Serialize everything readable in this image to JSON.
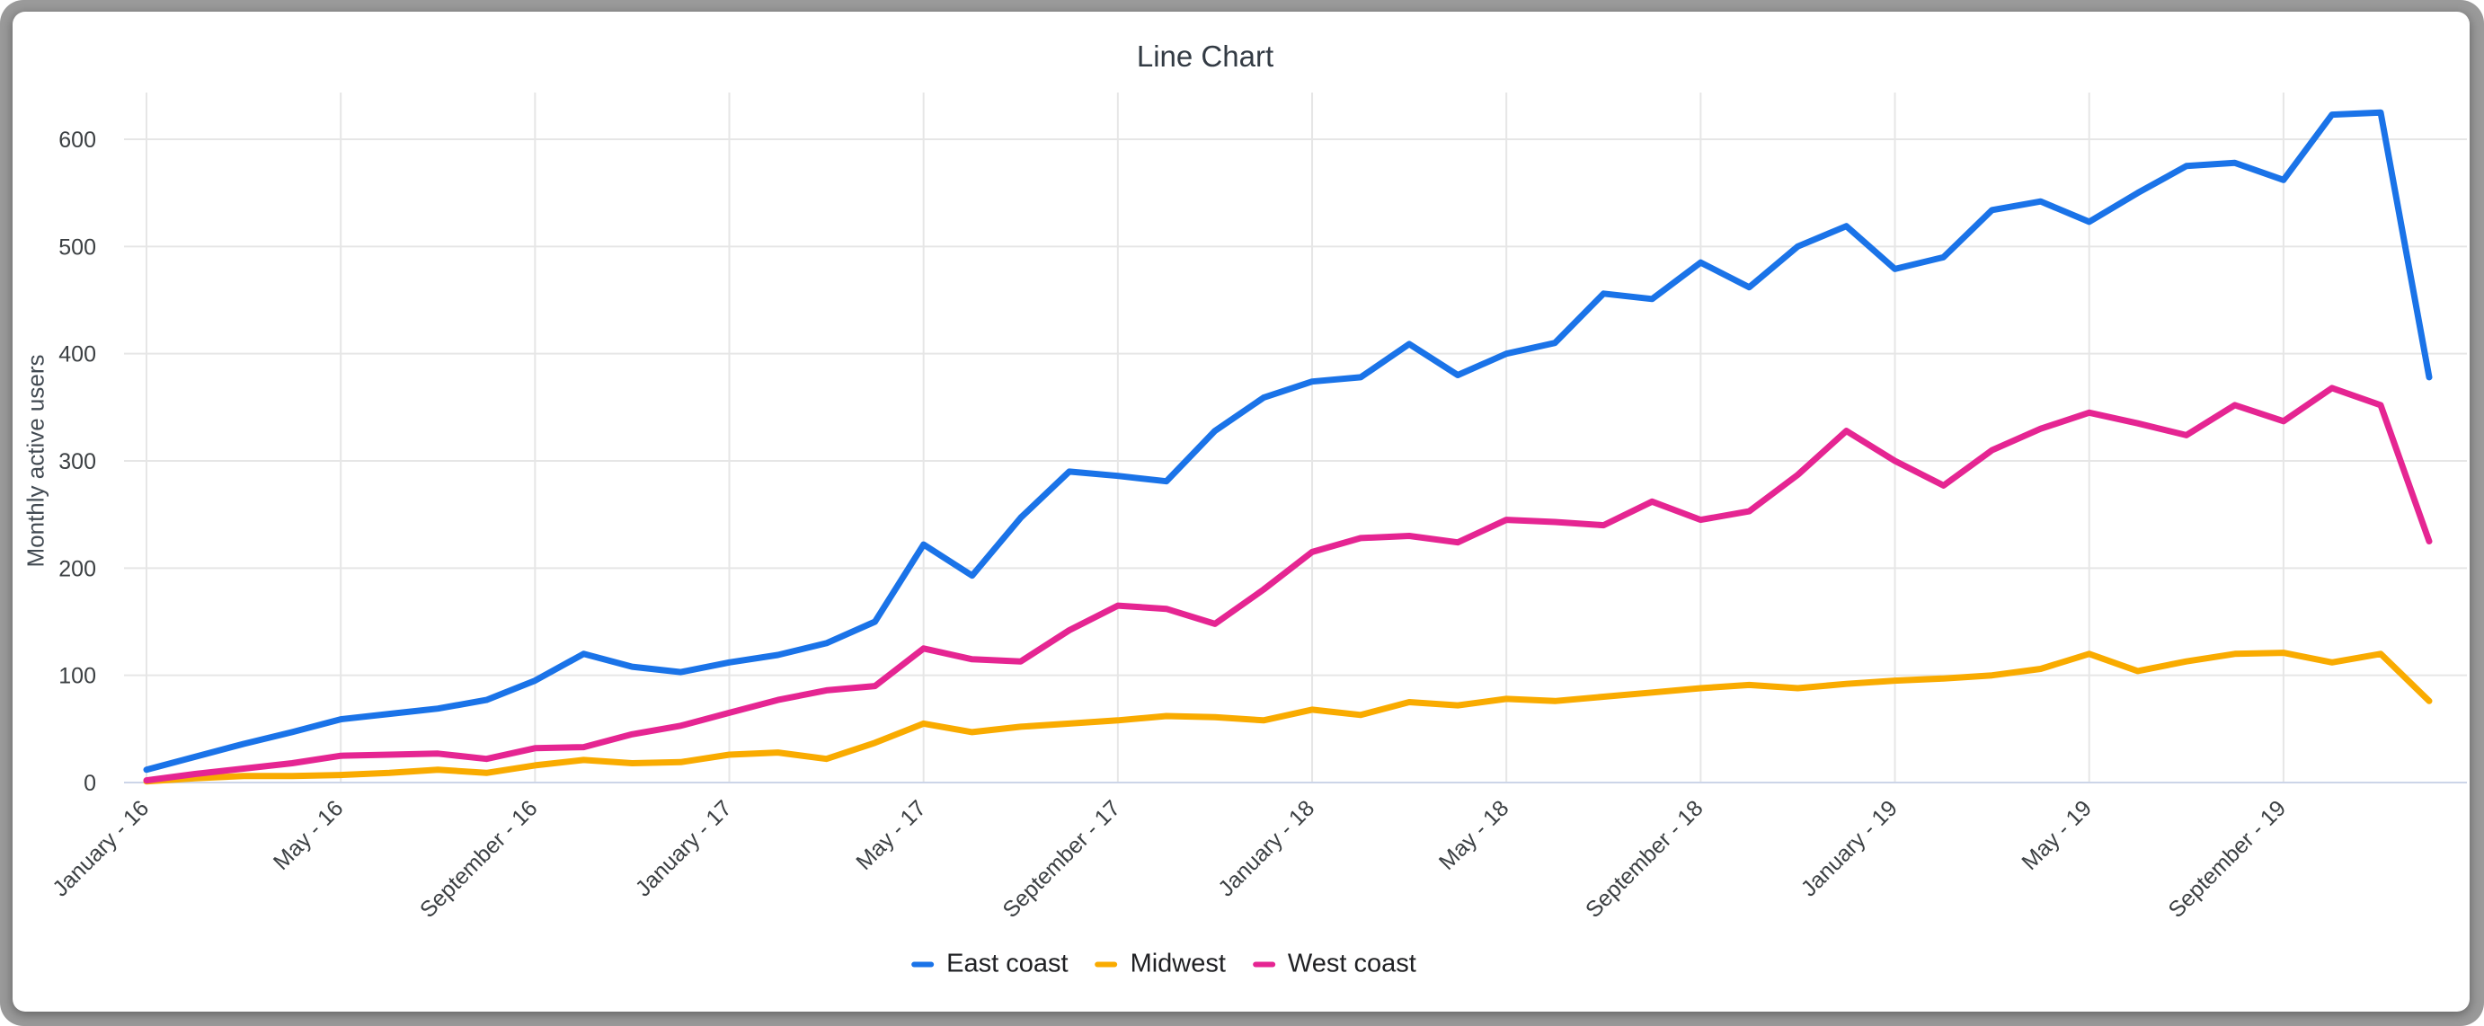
{
  "window": {
    "frame_color": "#9a9a9a",
    "card_color": "#ffffff"
  },
  "chart_data": {
    "type": "line",
    "title": "Line Chart",
    "xlabel": "",
    "ylabel": "Monthly active users",
    "legend_position": "bottom",
    "grid": true,
    "ylim": [
      0,
      643
    ],
    "y_ticks": [
      0,
      100,
      200,
      300,
      400,
      500,
      600
    ],
    "x_tick_labels": [
      "January - 16",
      "May - 16",
      "September - 16",
      "January - 17",
      "May - 17",
      "September - 17",
      "January - 18",
      "May - 18",
      "September - 18",
      "January - 19",
      "May - 19",
      "September - 19"
    ],
    "x_tick_point_indices": [
      0,
      4,
      8,
      12,
      16,
      20,
      24,
      28,
      32,
      36,
      40,
      44
    ],
    "points_per_series": 48,
    "x_range_note": "monthly points January 2016 through December 2019",
    "series": [
      {
        "name": "East coast",
        "color": "#1a73e8",
        "values": [
          12,
          24,
          36,
          47,
          59,
          64,
          69,
          77,
          95,
          120,
          108,
          103,
          112,
          119,
          130,
          150,
          222,
          193,
          247,
          290,
          286,
          281,
          328,
          359,
          374,
          378,
          409,
          380,
          400,
          410,
          456,
          451,
          485,
          462,
          500,
          519,
          479,
          490,
          534,
          542,
          523,
          550,
          575,
          578,
          562,
          623,
          625,
          378
        ]
      },
      {
        "name": "Midwest",
        "color": "#f9ab00",
        "values": [
          1,
          4,
          6,
          6,
          7,
          9,
          12,
          9,
          16,
          21,
          18,
          19,
          26,
          28,
          22,
          37,
          55,
          47,
          52,
          55,
          58,
          62,
          61,
          58,
          68,
          63,
          75,
          72,
          78,
          76,
          80,
          84,
          88,
          91,
          88,
          92,
          95,
          97,
          100,
          106,
          120,
          104,
          113,
          120,
          121,
          112,
          120,
          76
        ]
      },
      {
        "name": "West coast",
        "color": "#e52592",
        "values": [
          2,
          8,
          13,
          18,
          25,
          26,
          27,
          22,
          32,
          33,
          45,
          53,
          65,
          77,
          86,
          90,
          125,
          115,
          113,
          142,
          165,
          162,
          148,
          180,
          215,
          228,
          230,
          224,
          245,
          243,
          240,
          262,
          245,
          253,
          287,
          328,
          300,
          277,
          310,
          330,
          345,
          335,
          324,
          352,
          337,
          368,
          352,
          225
        ]
      }
    ],
    "style": {
      "gridline_color": "#e6e6e6",
      "baseline_color": "#ccd5e8",
      "tick_text_color": "#3c4043",
      "title_color": "#333b44",
      "line_width": 7
    }
  }
}
